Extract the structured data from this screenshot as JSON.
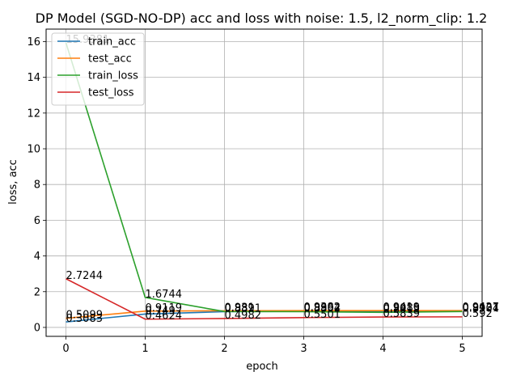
{
  "chart_data": {
    "type": "line",
    "title": "DP Model (SGD-NO-DP) acc and loss with noise: 1.5, l2_norm_clip: 1.2",
    "xlabel": "epoch",
    "ylabel": "loss, acc",
    "x": [
      0,
      1,
      2,
      3,
      4,
      5
    ],
    "xlim": [
      -0.25,
      5.25
    ],
    "ylim": [
      -0.5,
      16.7
    ],
    "xticks": [
      "0",
      "1",
      "2",
      "3",
      "4",
      "5"
    ],
    "yticks": [
      "0",
      "2",
      "4",
      "6",
      "8",
      "10",
      "12",
      "14",
      "16"
    ],
    "grid": true,
    "legend_position": "top-left",
    "series": [
      {
        "name": "train_acc",
        "color": "#1f77b4",
        "values": [
          0.3083,
          0.749,
          0.8821,
          0.8994,
          0.9085,
          0.9131
        ],
        "labels": [
          "0.3083",
          "0.749",
          "0.8821",
          "0.8994",
          "0.9085",
          "0.9131"
        ]
      },
      {
        "name": "test_acc",
        "color": "#ff7f0e",
        "values": [
          0.5099,
          0.9119,
          0.931,
          0.9382,
          0.9419,
          0.9427
        ],
        "labels": [
          "0.5099",
          "0.9119",
          "0.931",
          "0.9382",
          "0.9419",
          "0.9427"
        ]
      },
      {
        "name": "train_loss",
        "color": "#2ca02c",
        "values": [
          15.9381,
          1.6744,
          0.889,
          0.8802,
          0.8419,
          0.8904
        ],
        "labels": [
          "15.9381",
          "1.6744",
          "0.889",
          "0.8802",
          "0.8419",
          "0.8904"
        ]
      },
      {
        "name": "test_loss",
        "color": "#d62728",
        "values": [
          2.7244,
          0.4624,
          0.4982,
          0.5501,
          0.5839,
          0.592
        ],
        "labels": [
          "2.7244",
          "0.4624",
          "0.4982",
          "0.5501",
          "0.5839",
          "0.592"
        ]
      }
    ]
  }
}
